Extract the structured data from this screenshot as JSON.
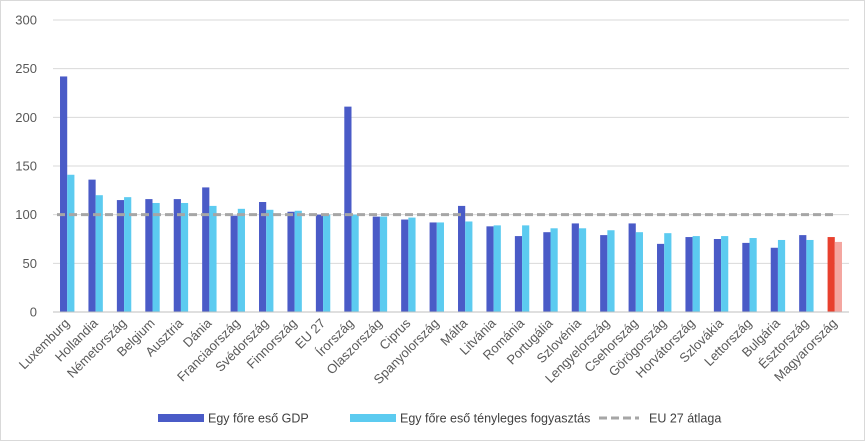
{
  "chart_data": {
    "type": "bar",
    "categories": [
      "Luxemburg",
      "Hollandia",
      "Németország",
      "Belgium",
      "Ausztria",
      "Dánia",
      "Franciaország",
      "Svédország",
      "Finnország",
      "EU 27",
      "Írország",
      "Olaszország",
      "Ciprus",
      "Spanyolország",
      "Málta",
      "Litvánia",
      "Románia",
      "Portugália",
      "Szlovénia",
      "Lengyelország",
      "Csehország",
      "Görögország",
      "Horvátország",
      "Szlovákia",
      "Lettország",
      "Bulgária",
      "Észtország",
      "Magyarország"
    ],
    "series": [
      {
        "name": "Egy főre eső GDP",
        "color": "#4a5bc7",
        "values": [
          242,
          136,
          115,
          116,
          116,
          128,
          99,
          113,
          103,
          100,
          211,
          98,
          95,
          92,
          109,
          88,
          78,
          82,
          91,
          79,
          91,
          70,
          77,
          75,
          71,
          66,
          79,
          77
        ]
      },
      {
        "name": "Egy főre eső tényleges fogyasztás",
        "color": "#5ccbf0",
        "values": [
          141,
          120,
          118,
          112,
          112,
          109,
          106,
          105,
          104,
          100,
          100,
          98,
          97,
          92,
          93,
          89,
          89,
          86,
          86,
          84,
          82,
          81,
          78,
          78,
          76,
          74,
          74,
          72
        ]
      }
    ],
    "reference_line": {
      "name": "EU 27 átlaga",
      "value": 100,
      "color": "#a6a6a6",
      "style": "dashed"
    },
    "highlight": {
      "category": "Magyarország",
      "colors": [
        "#e8402e",
        "#f4a6a0"
      ]
    },
    "ylim": [
      0,
      300
    ],
    "yticks": [
      0,
      50,
      100,
      150,
      200,
      250,
      300
    ],
    "xlabel": "",
    "ylabel": "",
    "title": "",
    "grid": "horizontal",
    "legend": "bottom"
  }
}
